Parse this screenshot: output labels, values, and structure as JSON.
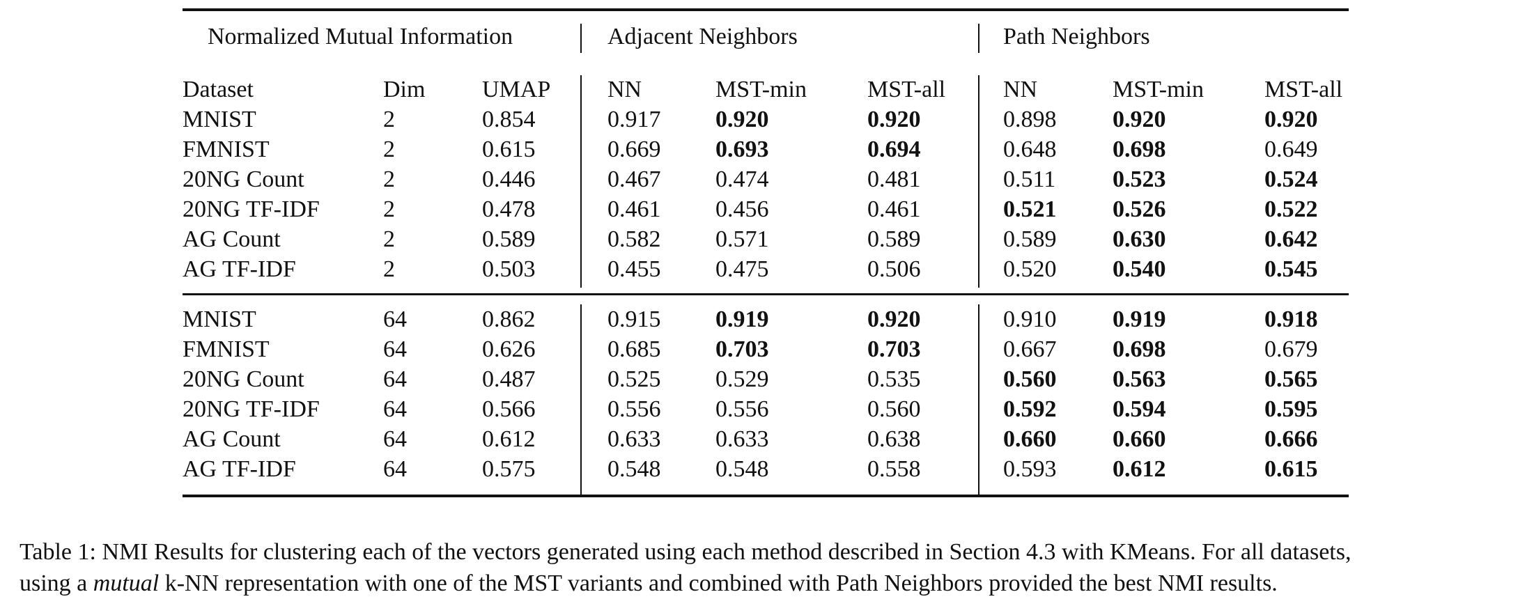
{
  "group_headers": [
    "Normalized Mutual Information",
    "Adjacent Neighbors",
    "Path Neighbors"
  ],
  "columns": [
    "Dataset",
    "Dim",
    "UMAP",
    "NN",
    "MST-min",
    "MST-all",
    "NN",
    "MST-min",
    "MST-all"
  ],
  "sections": [
    {
      "rows": [
        {
          "cells": [
            "MNIST",
            "2",
            "0.854",
            "0.917",
            "0.920",
            "0.920",
            "0.898",
            "0.920",
            "0.920"
          ],
          "bold": [
            4,
            5,
            7,
            8
          ]
        },
        {
          "cells": [
            "FMNIST",
            "2",
            "0.615",
            "0.669",
            "0.693",
            "0.694",
            "0.648",
            "0.698",
            "0.649"
          ],
          "bold": [
            4,
            5,
            7
          ]
        },
        {
          "cells": [
            "20NG Count",
            "2",
            "0.446",
            "0.467",
            "0.474",
            "0.481",
            "0.511",
            "0.523",
            "0.524"
          ],
          "bold": [
            7,
            8
          ]
        },
        {
          "cells": [
            "20NG TF-IDF",
            "2",
            "0.478",
            "0.461",
            "0.456",
            "0.461",
            "0.521",
            "0.526",
            "0.522"
          ],
          "bold": [
            6,
            7,
            8
          ]
        },
        {
          "cells": [
            "AG Count",
            "2",
            "0.589",
            "0.582",
            "0.571",
            "0.589",
            "0.589",
            "0.630",
            "0.642"
          ],
          "bold": [
            7,
            8
          ]
        },
        {
          "cells": [
            "AG TF-IDF",
            "2",
            "0.503",
            "0.455",
            "0.475",
            "0.506",
            "0.520",
            "0.540",
            "0.545"
          ],
          "bold": [
            7,
            8
          ]
        }
      ]
    },
    {
      "rows": [
        {
          "cells": [
            "MNIST",
            "64",
            "0.862",
            "0.915",
            "0.919",
            "0.920",
            "0.910",
            "0.919",
            "0.918"
          ],
          "bold": [
            4,
            5,
            7,
            8
          ]
        },
        {
          "cells": [
            "FMNIST",
            "64",
            "0.626",
            "0.685",
            "0.703",
            "0.703",
            "0.667",
            "0.698",
            "0.679"
          ],
          "bold": [
            4,
            5,
            7
          ]
        },
        {
          "cells": [
            "20NG Count",
            "64",
            "0.487",
            "0.525",
            "0.529",
            "0.535",
            "0.560",
            "0.563",
            "0.565"
          ],
          "bold": [
            6,
            7,
            8
          ]
        },
        {
          "cells": [
            "20NG TF-IDF",
            "64",
            "0.566",
            "0.556",
            "0.556",
            "0.560",
            "0.592",
            "0.594",
            "0.595"
          ],
          "bold": [
            6,
            7,
            8
          ]
        },
        {
          "cells": [
            "AG Count",
            "64",
            "0.612",
            "0.633",
            "0.633",
            "0.638",
            "0.660",
            "0.660",
            "0.666"
          ],
          "bold": [
            6,
            7,
            8
          ]
        },
        {
          "cells": [
            "AG TF-IDF",
            "64",
            "0.575",
            "0.548",
            "0.548",
            "0.558",
            "0.593",
            "0.612",
            "0.615"
          ],
          "bold": [
            7,
            8
          ]
        }
      ]
    }
  ],
  "caption": {
    "line1": "Table 1: NMI Results for clustering each of the vectors generated using each method described in Section 4.3 with KMeans. For all datasets,",
    "line2_pre": "using a ",
    "line2_em": "mutual",
    "line2_post": " k-NN representation with one of the MST variants and combined with Path Neighbors provided the best NMI results."
  }
}
